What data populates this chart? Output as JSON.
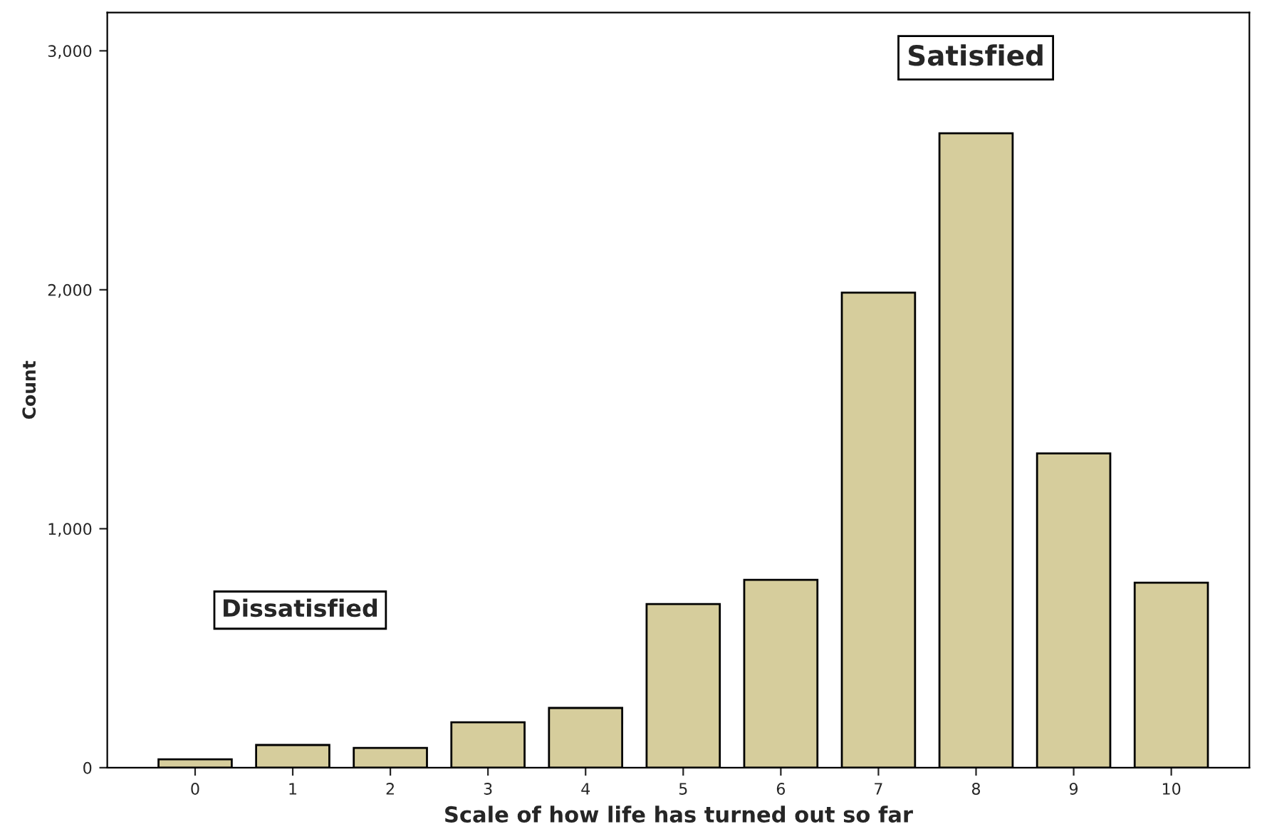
{
  "chart_data": {
    "type": "bar",
    "xlabel": "Scale of how life has turned out so far",
    "ylabel": "Count",
    "categories": [
      "0",
      "1",
      "2",
      "3",
      "4",
      "5",
      "6",
      "7",
      "8",
      "9",
      "10"
    ],
    "values": [
      35,
      95,
      83,
      190,
      250,
      685,
      786,
      1988,
      2655,
      1315,
      774
    ],
    "color": "#d6cd9c",
    "ylim": [
      0,
      3160
    ],
    "yticks": [
      {
        "value": 0,
        "label": "0"
      },
      {
        "value": 1000,
        "label": "1,000"
      },
      {
        "value": 2000,
        "label": "2,000"
      },
      {
        "value": 3000,
        "label": "3,000"
      }
    ],
    "annotations": [
      "Dissatisfied",
      "Satisfied"
    ],
    "grid": false
  }
}
